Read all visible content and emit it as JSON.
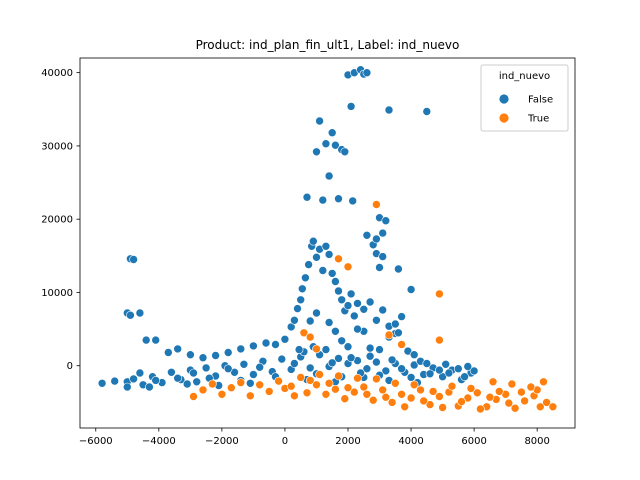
{
  "chart_data": {
    "type": "scatter",
    "title": "Product: ind_plan_fin_ult1, Label: ind_nuevo",
    "xlabel": "",
    "ylabel": "",
    "xlim": [
      -6500,
      9200
    ],
    "ylim": [
      -8500,
      42000
    ],
    "xticks": [
      -6000,
      -4000,
      -2000,
      0,
      2000,
      4000,
      6000,
      8000
    ],
    "yticks": [
      0,
      10000,
      20000,
      30000,
      40000
    ],
    "grid": false,
    "legend": {
      "title": "ind_nuevo",
      "placement": "top-right"
    },
    "series": [
      {
        "name": "False",
        "color": "#1f77b4",
        "points": [
          [
            -5800,
            -2400
          ],
          [
            -5400,
            -2100
          ],
          [
            -5000,
            -2200
          ],
          [
            -4800,
            -1800
          ],
          [
            -4500,
            -2600
          ],
          [
            -4200,
            -1500
          ],
          [
            -3900,
            -2300
          ],
          [
            -3600,
            -900
          ],
          [
            -3300,
            -1900
          ],
          [
            -3000,
            -600
          ],
          [
            -2800,
            -2200
          ],
          [
            -2500,
            -300
          ],
          [
            -2200,
            -1400
          ],
          [
            -1900,
            0
          ],
          [
            -1600,
            -900
          ],
          [
            -1300,
            200
          ],
          [
            -1000,
            -1200
          ],
          [
            -700,
            600
          ],
          [
            -400,
            -800
          ],
          [
            -100,
            900
          ],
          [
            200,
            -500
          ],
          [
            500,
            1200
          ],
          [
            800,
            -300
          ],
          [
            1100,
            1500
          ],
          [
            1400,
            -100
          ],
          [
            1700,
            1000
          ],
          [
            2000,
            300
          ],
          [
            2300,
            700
          ],
          [
            2600,
            -400
          ],
          [
            2900,
            500
          ],
          [
            3200,
            -700
          ],
          [
            3500,
            300
          ],
          [
            3800,
            -900
          ],
          [
            4100,
            100
          ],
          [
            4400,
            -1200
          ],
          [
            4700,
            -300
          ],
          [
            5000,
            -1500
          ],
          [
            5300,
            -600
          ],
          [
            5600,
            -1900
          ],
          [
            5900,
            -1000
          ],
          [
            -4300,
            -2900
          ],
          [
            -3100,
            -2500
          ],
          [
            -2100,
            -2700
          ],
          [
            -1100,
            -2400
          ],
          [
            -200,
            -2100
          ],
          [
            700,
            -1900
          ],
          [
            1600,
            -2200
          ],
          [
            2500,
            -1600
          ],
          [
            3300,
            -2000
          ],
          [
            4200,
            -2300
          ],
          [
            -5000,
            -2900
          ],
          [
            -4600,
            -1000
          ],
          [
            -4100,
            -2000
          ],
          [
            -3400,
            -1700
          ],
          [
            -2900,
            -1000
          ],
          [
            -2400,
            -1700
          ],
          [
            -1800,
            -400
          ],
          [
            -1400,
            -2000
          ],
          [
            -800,
            -200
          ],
          [
            -300,
            -1500
          ],
          [
            300,
            300
          ],
          [
            600,
            1900
          ],
          [
            900,
            2600
          ],
          [
            1000,
            -1100
          ],
          [
            1300,
            2200
          ],
          [
            1500,
            400
          ],
          [
            1800,
            -1500
          ],
          [
            2100,
            1100
          ],
          [
            2400,
            -1000
          ],
          [
            2700,
            1300
          ],
          [
            3000,
            -1300
          ],
          [
            3400,
            800
          ],
          [
            3700,
            -400
          ],
          [
            4000,
            -1600
          ],
          [
            4300,
            600
          ],
          [
            4600,
            -1100
          ],
          [
            4900,
            -600
          ],
          [
            5200,
            -1000
          ],
          [
            5500,
            -400
          ],
          [
            5700,
            -1500
          ],
          [
            -4900,
            14600
          ],
          [
            -4800,
            14500
          ],
          [
            -5000,
            7200
          ],
          [
            -4900,
            6900
          ],
          [
            -4600,
            7200
          ],
          [
            -4400,
            3500
          ],
          [
            -4100,
            3500
          ],
          [
            -3700,
            1800
          ],
          [
            -3400,
            2300
          ],
          [
            -3000,
            1500
          ],
          [
            -2600,
            1100
          ],
          [
            -2200,
            1400
          ],
          [
            -1800,
            1800
          ],
          [
            -1400,
            2300
          ],
          [
            -1000,
            2700
          ],
          [
            -600,
            3100
          ],
          [
            -300,
            2900
          ],
          [
            0,
            3600
          ],
          [
            200,
            5300
          ],
          [
            300,
            6200
          ],
          [
            400,
            7800
          ],
          [
            500,
            9000
          ],
          [
            550,
            10500
          ],
          [
            650,
            12000
          ],
          [
            750,
            13800
          ],
          [
            850,
            16300
          ],
          [
            900,
            17000
          ],
          [
            1000,
            14800
          ],
          [
            1100,
            15900
          ],
          [
            1200,
            13000
          ],
          [
            1300,
            16300
          ],
          [
            1400,
            15200
          ],
          [
            1500,
            12600
          ],
          [
            1600,
            11500
          ],
          [
            1700,
            10200
          ],
          [
            1800,
            9000
          ],
          [
            1900,
            7500
          ],
          [
            2000,
            8200
          ],
          [
            2100,
            9800
          ],
          [
            2200,
            6800
          ],
          [
            2300,
            8500
          ],
          [
            2500,
            7700
          ],
          [
            2700,
            8700
          ],
          [
            2900,
            6200
          ],
          [
            3100,
            7600
          ],
          [
            3300,
            5400
          ],
          [
            3500,
            4400
          ],
          [
            3700,
            6700
          ],
          [
            3900,
            2000
          ],
          [
            4100,
            1500
          ],
          [
            700,
            23000
          ],
          [
            1000,
            29200
          ],
          [
            1100,
            33400
          ],
          [
            1200,
            22600
          ],
          [
            1300,
            30300
          ],
          [
            1400,
            25900
          ],
          [
            1500,
            31800
          ],
          [
            1600,
            30100
          ],
          [
            1700,
            22800
          ],
          [
            1800,
            29500
          ],
          [
            1900,
            29200
          ],
          [
            2000,
            39700
          ],
          [
            2100,
            35400
          ],
          [
            2150,
            22500
          ],
          [
            2200,
            40000
          ],
          [
            2400,
            40400
          ],
          [
            2500,
            39800
          ],
          [
            2600,
            40000
          ],
          [
            3300,
            34900
          ],
          [
            4500,
            34700
          ],
          [
            2600,
            17800
          ],
          [
            2800,
            16500
          ],
          [
            2900,
            17300
          ],
          [
            3000,
            20200
          ],
          [
            3100,
            18100
          ],
          [
            3200,
            19800
          ],
          [
            3000,
            13400
          ],
          [
            2900,
            15300
          ],
          [
            3100,
            14900
          ],
          [
            3600,
            13200
          ],
          [
            4000,
            10400
          ],
          [
            3500,
            5700
          ],
          [
            3300,
            3900
          ],
          [
            3600,
            4500
          ],
          [
            2500,
            4700
          ],
          [
            2300,
            5000
          ],
          [
            2000,
            2600
          ],
          [
            1800,
            3400
          ],
          [
            1600,
            4700
          ],
          [
            1400,
            5900
          ],
          [
            6000,
            -700
          ],
          [
            5800,
            -100
          ],
          [
            4500,
            300
          ],
          [
            5100,
            200
          ],
          [
            3000,
            2200
          ],
          [
            2700,
            2400
          ],
          [
            1000,
            7200
          ],
          [
            800,
            6100
          ],
          [
            600,
            4500
          ],
          [
            450,
            2200
          ]
        ]
      },
      {
        "name": "True",
        "color": "#ff7f0e",
        "points": [
          [
            -2900,
            -4200
          ],
          [
            -2600,
            -3300
          ],
          [
            -2000,
            -3900
          ],
          [
            -1700,
            -3000
          ],
          [
            -1100,
            -4100
          ],
          [
            -500,
            -3500
          ],
          [
            0,
            -3100
          ],
          [
            300,
            -4100
          ],
          [
            700,
            -3700
          ],
          [
            1000,
            -2600
          ],
          [
            1300,
            -3900
          ],
          [
            1600,
            -3200
          ],
          [
            1900,
            -4500
          ],
          [
            2200,
            -3600
          ],
          [
            2500,
            -2900
          ],
          [
            2800,
            -4700
          ],
          [
            3100,
            -3300
          ],
          [
            3400,
            -5000
          ],
          [
            3700,
            -3900
          ],
          [
            4000,
            -4400
          ],
          [
            4300,
            -3300
          ],
          [
            4600,
            -5300
          ],
          [
            4900,
            -4200
          ],
          [
            5200,
            -3600
          ],
          [
            5500,
            -5500
          ],
          [
            5800,
            -4400
          ],
          [
            6100,
            -3700
          ],
          [
            6400,
            -5600
          ],
          [
            6700,
            -4600
          ],
          [
            7000,
            -3900
          ],
          [
            7300,
            -5800
          ],
          [
            7600,
            -4800
          ],
          [
            7900,
            -4100
          ],
          [
            8100,
            -5600
          ],
          [
            8300,
            -5000
          ],
          [
            8500,
            -5600
          ],
          [
            8000,
            -3300
          ],
          [
            7500,
            -3600
          ],
          [
            7100,
            -5100
          ],
          [
            6800,
            -3500
          ],
          [
            6500,
            -4300
          ],
          [
            6200,
            -5900
          ],
          [
            5900,
            -3100
          ],
          [
            5600,
            -4900
          ],
          [
            5300,
            -2800
          ],
          [
            5000,
            -5700
          ],
          [
            4700,
            -3500
          ],
          [
            4400,
            -4800
          ],
          [
            4100,
            -2600
          ],
          [
            3800,
            -5600
          ],
          [
            3500,
            -2400
          ],
          [
            3200,
            -4300
          ],
          [
            2900,
            -1800
          ],
          [
            2600,
            -3900
          ],
          [
            2300,
            -1700
          ],
          [
            2000,
            -3000
          ],
          [
            1700,
            -1400
          ],
          [
            1400,
            -2400
          ],
          [
            1100,
            -1200
          ],
          [
            800,
            -2000
          ],
          [
            500,
            -1600
          ],
          [
            200,
            -2800
          ],
          [
            -200,
            -2100
          ],
          [
            -800,
            -2600
          ],
          [
            -1400,
            -2300
          ],
          [
            -2300,
            -2500
          ],
          [
            8200,
            -2200
          ],
          [
            7800,
            -2900
          ],
          [
            7200,
            -2500
          ],
          [
            6600,
            -2200
          ],
          [
            2900,
            22000
          ],
          [
            2000,
            13500
          ],
          [
            1700,
            14600
          ],
          [
            4900,
            9800
          ],
          [
            3300,
            4200
          ],
          [
            3700,
            2900
          ],
          [
            4900,
            3500
          ],
          [
            1000,
            2300
          ],
          [
            600,
            4500
          ],
          [
            800,
            3900
          ]
        ]
      }
    ]
  }
}
